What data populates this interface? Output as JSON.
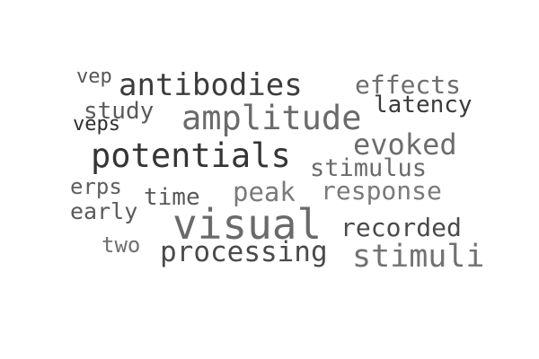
{
  "words": [
    {
      "id": "vep",
      "text": "vep",
      "color": "#555555"
    },
    {
      "id": "antibodies",
      "text": "antibodies",
      "color": "#3c3c3c"
    },
    {
      "id": "effects",
      "text": "effects",
      "color": "#6e6e6e"
    },
    {
      "id": "study",
      "text": "study",
      "color": "#5a5a5a"
    },
    {
      "id": "latency",
      "text": "latency",
      "color": "#3a3a3a"
    },
    {
      "id": "amplitude",
      "text": "amplitude",
      "color": "#6a6a6a"
    },
    {
      "id": "veps",
      "text": "veps",
      "color": "#2e2e2e"
    },
    {
      "id": "evoked",
      "text": "evoked",
      "color": "#6c6c6c"
    },
    {
      "id": "potentials",
      "text": "potentials",
      "color": "#353535"
    },
    {
      "id": "stimulus",
      "text": "stimulus",
      "color": "#6a6a6a"
    },
    {
      "id": "erps",
      "text": "erps",
      "color": "#5e5e5e"
    },
    {
      "id": "time",
      "text": "time",
      "color": "#585858"
    },
    {
      "id": "peak",
      "text": "peak",
      "color": "#7a7a7a"
    },
    {
      "id": "response",
      "text": "response",
      "color": "#7a7a7a"
    },
    {
      "id": "early",
      "text": "early",
      "color": "#5a5a5a"
    },
    {
      "id": "visual",
      "text": "visual",
      "color": "#6a6a6a"
    },
    {
      "id": "recorded",
      "text": "recorded",
      "color": "#4a4a4a"
    },
    {
      "id": "two",
      "text": "two",
      "color": "#707070"
    },
    {
      "id": "processing",
      "text": "processing",
      "color": "#4a4a4a"
    },
    {
      "id": "stimuli",
      "text": "stimuli",
      "color": "#727272"
    }
  ]
}
